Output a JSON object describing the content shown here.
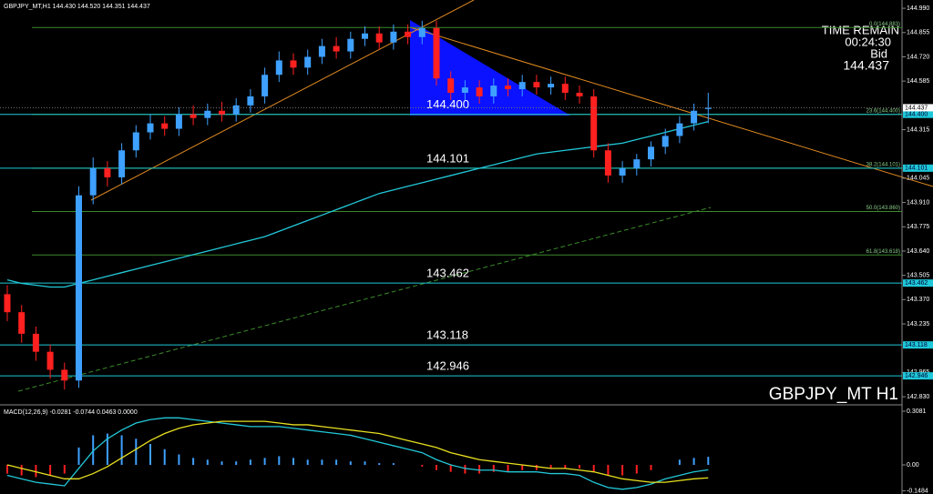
{
  "chart_data": [
    {
      "type": "candlestick",
      "header": "GBPJPY_MT,H1  144.430 144.520 144.351 144.437",
      "title": "GBPJPY_MT H1",
      "time_remain_label": "TIME REMAIN",
      "time_remain": "00:24:30",
      "bid_label": "Bid",
      "bid": 144.437,
      "up_color": "#3ea0ff",
      "down_color": "#ff2020",
      "open": [
        143.4,
        143.3,
        143.18,
        143.08,
        142.98,
        142.92,
        143.95,
        144.1,
        144.05,
        144.2,
        144.3,
        144.35,
        144.32,
        144.4,
        144.38,
        144.42,
        144.4,
        144.45,
        144.5,
        144.62,
        144.7,
        144.66,
        144.72,
        144.78,
        144.75,
        144.82,
        144.85,
        144.8,
        144.86,
        144.83,
        144.88,
        144.6,
        144.52,
        144.55,
        144.5,
        144.56,
        144.54,
        144.58,
        144.55,
        144.57,
        144.52,
        144.5,
        144.2,
        144.06,
        144.1,
        144.15,
        144.22,
        144.28,
        144.35,
        144.43
      ],
      "high": [
        143.45,
        143.34,
        143.22,
        143.12,
        143.02,
        144.0,
        144.16,
        144.14,
        144.24,
        144.34,
        144.4,
        144.39,
        144.44,
        144.45,
        144.46,
        144.47,
        144.49,
        144.54,
        144.66,
        144.75,
        144.74,
        144.76,
        144.82,
        144.83,
        144.86,
        144.89,
        144.89,
        144.9,
        144.9,
        144.92,
        144.92,
        144.64,
        144.59,
        144.59,
        144.6,
        144.6,
        144.62,
        144.62,
        144.61,
        144.61,
        144.56,
        144.54,
        144.24,
        144.14,
        144.18,
        144.25,
        144.32,
        144.39,
        144.46,
        144.52
      ],
      "low": [
        143.25,
        143.13,
        143.03,
        142.93,
        142.87,
        142.88,
        143.9,
        144.0,
        144.01,
        144.16,
        144.26,
        144.28,
        144.28,
        144.34,
        144.34,
        144.36,
        144.36,
        144.41,
        144.46,
        144.58,
        144.62,
        144.62,
        144.68,
        144.71,
        144.71,
        144.78,
        144.76,
        144.76,
        144.79,
        144.79,
        144.56,
        144.48,
        144.48,
        144.46,
        144.46,
        144.5,
        144.5,
        144.51,
        144.51,
        144.48,
        144.46,
        144.16,
        144.02,
        144.02,
        144.06,
        144.11,
        144.18,
        144.24,
        144.31,
        144.351
      ],
      "close": [
        143.3,
        143.18,
        143.08,
        142.98,
        142.92,
        143.95,
        144.1,
        144.05,
        144.2,
        144.3,
        144.35,
        144.32,
        144.4,
        144.38,
        144.42,
        144.4,
        144.45,
        144.5,
        144.62,
        144.7,
        144.66,
        144.72,
        144.78,
        144.75,
        144.82,
        144.85,
        144.8,
        144.86,
        144.83,
        144.88,
        144.6,
        144.52,
        144.55,
        144.5,
        144.56,
        144.54,
        144.58,
        144.55,
        144.57,
        144.52,
        144.5,
        144.2,
        144.06,
        144.1,
        144.15,
        144.22,
        144.28,
        144.35,
        144.42,
        144.437
      ],
      "ma_color": "#22c8d8",
      "ma": [
        143.48,
        143.46,
        143.45,
        143.44,
        143.44,
        143.46,
        143.48,
        143.5,
        143.52,
        143.54,
        143.56,
        143.58,
        143.6,
        143.62,
        143.64,
        143.66,
        143.68,
        143.7,
        143.72,
        143.75,
        143.78,
        143.81,
        143.84,
        143.87,
        143.9,
        143.93,
        143.96,
        143.98,
        144.0,
        144.02,
        144.04,
        144.06,
        144.08,
        144.1,
        144.12,
        144.14,
        144.16,
        144.18,
        144.19,
        144.2,
        144.21,
        144.22,
        144.23,
        144.24,
        144.26,
        144.28,
        144.3,
        144.32,
        144.34,
        144.36
      ],
      "level_color": "#1ec8d8",
      "levels": [
        {
          "value": 144.4,
          "label": "144.400"
        },
        {
          "value": 144.101,
          "label": "144.101"
        },
        {
          "value": 143.462,
          "label": "143.462"
        },
        {
          "value": 143.118,
          "label": "143.118"
        },
        {
          "value": 142.946,
          "label": "142.946"
        }
      ],
      "fib_color": "#3a8a2a",
      "fib": [
        {
          "value": 144.883,
          "label": "0.0(144.883)"
        },
        {
          "value": 144.4,
          "label": "23.6(144.400)"
        },
        {
          "value": 144.101,
          "label": "38.2(144.101)"
        },
        {
          "value": 143.86,
          "label": "50.0(143.860)"
        },
        {
          "value": 143.618,
          "label": "61.8(143.618)"
        }
      ],
      "ylim": [
        142.795,
        145.036
      ],
      "yticks": [
        {
          "value": 144.99,
          "label": "144.990"
        },
        144.855,
        {
          "value": 144.72,
          "label": "144.720"
        },
        144.585,
        144.315,
        144.045,
        {
          "value": 143.91,
          "label": "143.910"
        },
        143.775,
        {
          "value": 143.64,
          "label": "143.640"
        },
        143.505,
        {
          "value": 143.37,
          "label": "143.370"
        },
        143.235,
        142.965,
        {
          "value": 142.83,
          "label": "142.830"
        }
      ]
    },
    {
      "type": "macd",
      "header": "MACD(12,26,9) -0.0281 -0.0744 0.0463 0.0000",
      "up_color": "#3ea0ff",
      "down_color": "#ff2020",
      "histogram": [
        -0.05,
        -0.06,
        -0.07,
        -0.06,
        -0.05,
        0.1,
        0.17,
        0.18,
        0.17,
        0.15,
        0.12,
        0.09,
        0.06,
        0.04,
        0.03,
        0.02,
        0.02,
        0.03,
        0.04,
        0.05,
        0.04,
        0.03,
        0.03,
        0.03,
        0.02,
        0.02,
        0.01,
        0.01,
        0.0,
        -0.01,
        -0.03,
        -0.04,
        -0.05,
        -0.05,
        -0.04,
        -0.04,
        -0.03,
        -0.03,
        -0.02,
        -0.02,
        -0.02,
        -0.04,
        -0.06,
        -0.06,
        -0.05,
        -0.03,
        0.0,
        0.03,
        0.04,
        0.0463
      ],
      "macd_color": "#22c8d8",
      "macd": [
        -0.06,
        -0.08,
        -0.1,
        -0.11,
        -0.12,
        -0.02,
        0.08,
        0.15,
        0.2,
        0.24,
        0.26,
        0.27,
        0.27,
        0.26,
        0.25,
        0.24,
        0.23,
        0.22,
        0.22,
        0.22,
        0.21,
        0.2,
        0.19,
        0.18,
        0.17,
        0.15,
        0.13,
        0.11,
        0.09,
        0.07,
        0.03,
        0.0,
        -0.02,
        -0.03,
        -0.03,
        -0.04,
        -0.04,
        -0.04,
        -0.05,
        -0.05,
        -0.06,
        -0.1,
        -0.13,
        -0.14,
        -0.13,
        -0.11,
        -0.08,
        -0.06,
        -0.04,
        -0.0281
      ],
      "signal_color": "#e8e020",
      "signal": [
        0.0,
        -0.02,
        -0.04,
        -0.06,
        -0.08,
        -0.08,
        -0.05,
        -0.01,
        0.04,
        0.09,
        0.14,
        0.18,
        0.21,
        0.23,
        0.24,
        0.25,
        0.25,
        0.25,
        0.25,
        0.24,
        0.23,
        0.23,
        0.22,
        0.21,
        0.2,
        0.19,
        0.18,
        0.16,
        0.14,
        0.12,
        0.1,
        0.07,
        0.05,
        0.03,
        0.02,
        0.01,
        0.0,
        -0.01,
        -0.02,
        -0.02,
        -0.03,
        -0.04,
        -0.06,
        -0.08,
        -0.09,
        -0.1,
        -0.1,
        -0.09,
        -0.08,
        -0.0744
      ],
      "ylim": [
        -0.1566,
        0.3342
      ],
      "yticks": [
        0.3081,
        {
          "value": 0,
          "label": "0.00"
        },
        -0.1484
      ]
    }
  ]
}
